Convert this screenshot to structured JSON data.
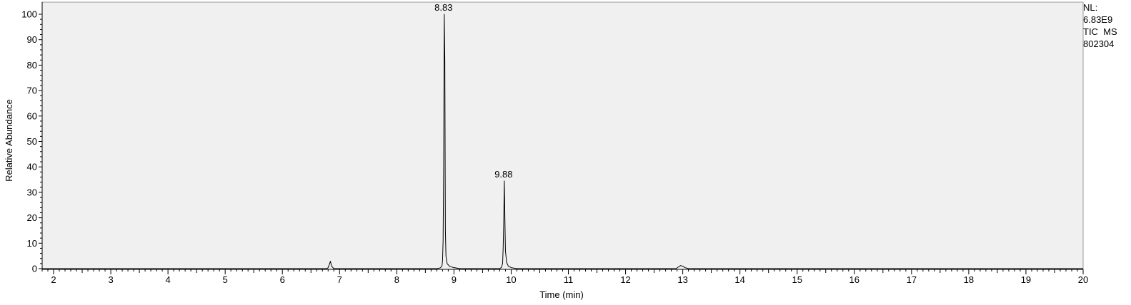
{
  "chart_data": {
    "type": "line",
    "xlabel": "Time (min)",
    "ylabel": "Relative Abundance",
    "xlim": [
      1.8,
      20
    ],
    "ylim": [
      0,
      100
    ],
    "x_ticks": [
      2,
      3,
      4,
      5,
      6,
      7,
      8,
      9,
      10,
      11,
      12,
      13,
      14,
      15,
      16,
      17,
      18,
      19,
      20
    ],
    "y_ticks": [
      0,
      10,
      20,
      30,
      40,
      50,
      60,
      70,
      80,
      90,
      100
    ],
    "grid": false,
    "background": "#f0f0f0",
    "line_color": "#000000",
    "peak_labels": [
      {
        "label": "8.83",
        "x": 8.83,
        "y": 100
      },
      {
        "label": "9.88",
        "x": 9.88,
        "y": 34.5
      }
    ],
    "series": [
      {
        "x": [
          1.8,
          6.78,
          6.8,
          6.82,
          6.84,
          6.86,
          6.9,
          8.7,
          8.76,
          8.79,
          8.8,
          8.81,
          8.82,
          8.83,
          8.84,
          8.85,
          8.86,
          8.88,
          8.92,
          8.98,
          9.1,
          9.8,
          9.83,
          9.85,
          9.86,
          9.87,
          9.88,
          9.89,
          9.9,
          9.92,
          9.95,
          10.0,
          10.1,
          12.88,
          12.92,
          12.96,
          13.0,
          13.04,
          13.1,
          20.0
        ],
        "y": [
          0,
          0,
          0.4,
          1.6,
          2.9,
          1.0,
          0,
          0,
          0.3,
          1.0,
          3.0,
          11.0,
          40.0,
          100.0,
          82.0,
          15.0,
          5.0,
          2.0,
          1.0,
          0.5,
          0,
          0,
          0.5,
          2.0,
          8.0,
          18.0,
          34.5,
          20.0,
          7.0,
          2.5,
          1.0,
          0.4,
          0,
          0,
          0.6,
          1.2,
          1.0,
          0.4,
          0,
          0
        ]
      }
    ]
  },
  "normalization": {
    "line1": "NL:",
    "line2": "6.83E9",
    "line3": "TIC  MS",
    "line4": "802304"
  }
}
